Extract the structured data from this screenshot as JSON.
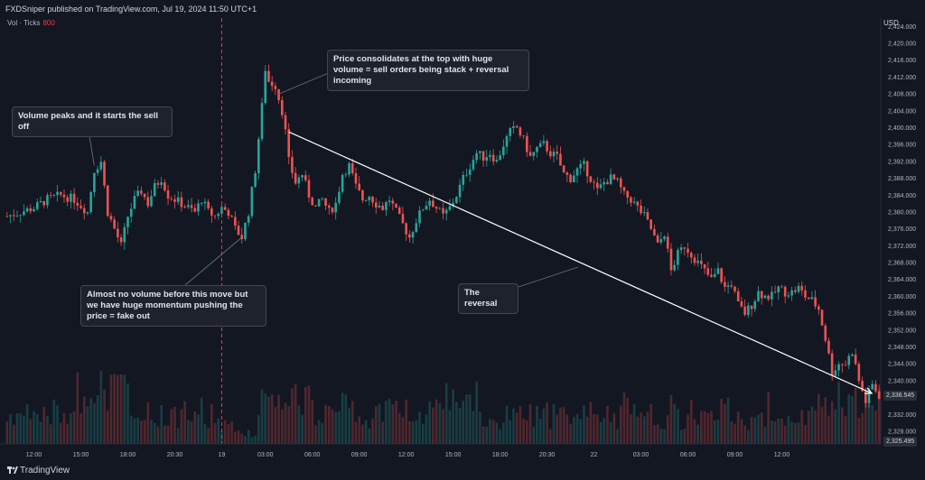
{
  "header": {
    "publisher_line": "FXDSniper published on TradingView.com, Jul 19, 2024 11:50 UTC+1"
  },
  "legend": {
    "label": "Vol · Ticks",
    "value": "800"
  },
  "price_axis": {
    "currency": "USD"
  },
  "footer": {
    "brand": "TradingView"
  },
  "annotations": {
    "volume_peak": "Volume peaks and it starts the sell off",
    "consolidation": "Price consolidates at the top with huge volume = sell orders being stack + reversal incoming",
    "fake_out": "Almost no volume before this move but we have huge momentum pushing the price = fake out",
    "reversal": "The reversal"
  },
  "colors": {
    "up": "#26a69a",
    "down": "#ef5350",
    "background": "#131722",
    "annotation_line": "#ffffff"
  },
  "chart_data": {
    "type": "candlestick",
    "y_ticks": [
      "2,424.000",
      "2,420.000",
      "2,416.000",
      "2,412.000",
      "2,408.000",
      "2,404.000",
      "2,400.000",
      "2,396.000",
      "2,392.000",
      "2,388.000",
      "2,384.000",
      "2,380.000",
      "2,376.000",
      "2,372.000",
      "2,368.000",
      "2,364.000",
      "2,360.000",
      "2,356.000",
      "2,352.000",
      "2,348.000",
      "2,344.000",
      "2,340.000",
      "2,336.000",
      "2,332.000",
      "2,328.000"
    ],
    "ylim": [
      2325,
      2426
    ],
    "x_ticks": [
      "12:00",
      "15:00",
      "18:00",
      "20:30",
      "19",
      "03:00",
      "06:00",
      "09:00",
      "12:00",
      "15:00",
      "18:00",
      "20:30",
      "22",
      "03:00",
      "06:00",
      "09:00",
      "12:00"
    ],
    "price_tags": [
      {
        "value": "2,336.545",
        "price": 2336.545
      },
      {
        "value": "2,325.495",
        "price": 2325.495
      }
    ],
    "session_divider_tick": "19",
    "close_path": [
      [
        0,
        2379
      ],
      [
        4,
        2380
      ],
      [
        8,
        2381
      ],
      [
        12,
        2383
      ],
      [
        16,
        2384
      ],
      [
        20,
        2383
      ],
      [
        24,
        2380
      ],
      [
        26,
        2390
      ],
      [
        28,
        2392
      ],
      [
        30,
        2380
      ],
      [
        32,
        2376
      ],
      [
        34,
        2372
      ],
      [
        36,
        2379
      ],
      [
        38,
        2383
      ],
      [
        40,
        2385
      ],
      [
        42,
        2382
      ],
      [
        44,
        2386
      ],
      [
        46,
        2388
      ],
      [
        48,
        2384
      ],
      [
        52,
        2382
      ],
      [
        56,
        2380
      ],
      [
        58,
        2383
      ],
      [
        60,
        2380
      ],
      [
        62,
        2379
      ],
      [
        64,
        2381
      ],
      [
        66,
        2380
      ],
      [
        68,
        2376
      ],
      [
        70,
        2374
      ],
      [
        72,
        2380
      ],
      [
        74,
        2390
      ],
      [
        76,
        2405
      ],
      [
        77,
        2414
      ],
      [
        78,
        2411
      ],
      [
        80,
        2410
      ],
      [
        82,
        2404
      ],
      [
        83,
        2399
      ],
      [
        84,
        2392
      ],
      [
        86,
        2387
      ],
      [
        88,
        2389
      ],
      [
        90,
        2384
      ],
      [
        92,
        2381
      ],
      [
        94,
        2383
      ],
      [
        96,
        2380
      ],
      [
        98,
        2382
      ],
      [
        100,
        2389
      ],
      [
        102,
        2391
      ],
      [
        104,
        2386
      ],
      [
        106,
        2383
      ],
      [
        108,
        2384
      ],
      [
        110,
        2382
      ],
      [
        112,
        2381
      ],
      [
        114,
        2383
      ],
      [
        116,
        2380
      ],
      [
        118,
        2377
      ],
      [
        120,
        2374
      ],
      [
        122,
        2378
      ],
      [
        124,
        2381
      ],
      [
        126,
        2383
      ],
      [
        128,
        2381
      ],
      [
        130,
        2379
      ],
      [
        132,
        2381
      ],
      [
        134,
        2384
      ],
      [
        136,
        2388
      ],
      [
        138,
        2391
      ],
      [
        140,
        2394
      ],
      [
        142,
        2393
      ],
      [
        144,
        2394
      ],
      [
        146,
        2392
      ],
      [
        148,
        2396
      ],
      [
        150,
        2399
      ],
      [
        152,
        2400
      ],
      [
        154,
        2397
      ],
      [
        156,
        2393
      ],
      [
        158,
        2395
      ],
      [
        160,
        2396
      ],
      [
        162,
        2394
      ],
      [
        164,
        2393
      ],
      [
        166,
        2389
      ],
      [
        168,
        2388
      ],
      [
        170,
        2390
      ],
      [
        172,
        2391
      ],
      [
        174,
        2388
      ],
      [
        176,
        2385
      ],
      [
        178,
        2387
      ],
      [
        180,
        2388
      ],
      [
        182,
        2387
      ],
      [
        184,
        2384
      ],
      [
        186,
        2383
      ],
      [
        188,
        2381
      ],
      [
        190,
        2379
      ],
      [
        192,
        2376
      ],
      [
        194,
        2372
      ],
      [
        196,
        2375
      ],
      [
        198,
        2366
      ],
      [
        200,
        2370
      ],
      [
        202,
        2372
      ],
      [
        204,
        2370
      ],
      [
        206,
        2368
      ],
      [
        208,
        2366
      ],
      [
        210,
        2364
      ],
      [
        212,
        2366
      ],
      [
        214,
        2362
      ],
      [
        216,
        2363
      ],
      [
        218,
        2358
      ],
      [
        220,
        2356
      ],
      [
        222,
        2358
      ],
      [
        224,
        2361
      ],
      [
        226,
        2360
      ],
      [
        228,
        2360
      ],
      [
        230,
        2362
      ],
      [
        232,
        2361
      ],
      [
        234,
        2361
      ],
      [
        236,
        2362
      ],
      [
        238,
        2360
      ],
      [
        240,
        2359
      ],
      [
        242,
        2357
      ],
      [
        244,
        2350
      ],
      [
        246,
        2342
      ],
      [
        248,
        2344
      ],
      [
        250,
        2344
      ],
      [
        252,
        2347
      ],
      [
        254,
        2340
      ],
      [
        256,
        2335
      ],
      [
        258,
        2339
      ],
      [
        260,
        2336.5
      ]
    ],
    "annotation_line": {
      "from": [
        84,
        2399
      ],
      "to": [
        260,
        2337
      ]
    }
  }
}
